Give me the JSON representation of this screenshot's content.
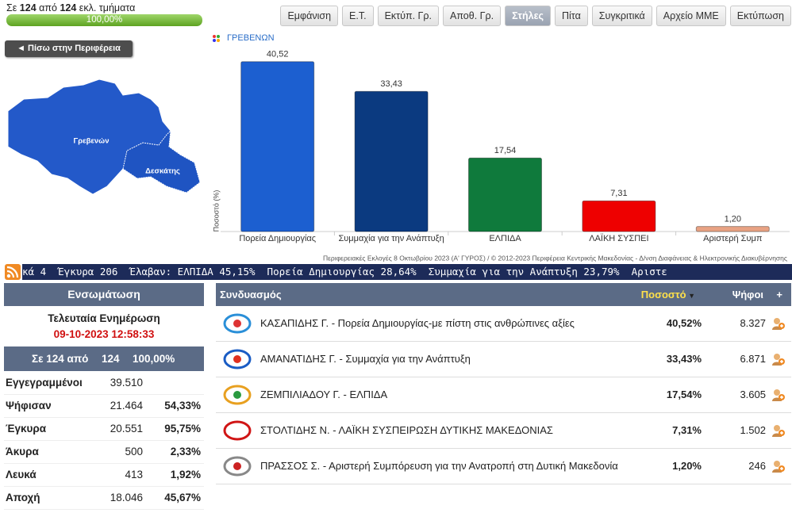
{
  "header": {
    "prefix": "Σε",
    "done": "124",
    "middle": "από",
    "total": "124",
    "suffix": "εκλ. τμήματα",
    "progress": "100,00%"
  },
  "toolbar": [
    "Εμφάνιση",
    "Ε.Τ.",
    "Εκτύπ. Γρ.",
    "Αποθ. Γρ.",
    "Στήλες",
    "Πίτα",
    "Συγκριτικά",
    "Αρχείο ΜΜΕ",
    "Εκτύπωση"
  ],
  "back_button": "◄ Πίσω στην Περιφέρεια",
  "map": {
    "labels": [
      "Γρεβενών",
      "Δεσκάτης"
    ]
  },
  "chart_data": {
    "type": "bar",
    "title": "ΓΡΕΒΕΝΩΝ",
    "y_label": "Ποσοστό (%)",
    "categories": [
      "Πορεία Δημιουργίας",
      "Συμμαχία για την Ανάπτυξη",
      "ΕΛΠΙΔΑ",
      "ΛΑΪΚΗ ΣΥΣΠΕΙ",
      "Αριστερή Συμπ"
    ],
    "values": [
      40.52,
      33.43,
      17.54,
      7.31,
      1.2
    ],
    "value_labels": [
      "40,52",
      "33,43",
      "17,54",
      "7,31",
      "1,20"
    ],
    "colors": [
      "#1c5fd0",
      "#0b3a80",
      "#0f7a3c",
      "#ee0000",
      "#e8a283"
    ],
    "ylim": [
      0,
      45
    ],
    "footnote": "Περιφερειακές Εκλογές 8 Οκτωβρίου 2023 (Α' ΓΥΡΟΣ) / © 2012-2023 Περιφέρεια Κεντρικής Μακεδονίας - Δ/νση Διαφάνειας & Ηλεκτρονικής Διακυβέρνησης"
  },
  "ticker": "κά 4  Έγκυρα 206  Έλαβαν: ΕΛΠΙΔΑ 45,15%  Πορεία Δημιουργίας 28,64%  Συμμαχία για την Ανάπτυξη 23,79%  Αριστε",
  "summary": {
    "title": "Ενσωμάτωση",
    "update_label": "Τελευταία Ενημέρωση",
    "update_time": "09-10-2023 12:58:33",
    "coverage": [
      "Σε 124 από",
      "124",
      "100,00%"
    ],
    "rows": [
      [
        "Εγγεγραμμένοι",
        "39.510"
      ],
      [
        "Ψήφισαν",
        "21.464",
        "54,33%"
      ],
      [
        "Έγκυρα",
        "20.551",
        "95,75%"
      ],
      [
        "Άκυρα",
        "500",
        "2,33%"
      ],
      [
        "Λευκά",
        "413",
        "1,92%"
      ],
      [
        "Αποχή",
        "18.046",
        "45,67%"
      ]
    ]
  },
  "results": {
    "columns": [
      "Συνδυασμός",
      "Ποσοστό",
      "Ψήφοι",
      "+"
    ],
    "rows": [
      [
        "ΚΑΣΑΠΙΔΗΣ Γ. - Πορεία Δημιουργίας-με πίστη στις ανθρώπινες αξίες",
        "40,52%",
        "8.327"
      ],
      [
        "ΑΜΑΝΑΤΙΔΗΣ Γ. - Συμμαχία για την Ανάπτυξη",
        "33,43%",
        "6.871"
      ],
      [
        "ΖΕΜΠΙΛΙΑΔΟΥ Γ. - ΕΛΠΙΔΑ",
        "17,54%",
        "3.605"
      ],
      [
        "ΣΤΟΛΤΙΔΗΣ Ν. - ΛΑΪΚΗ ΣΥΣΠΕΙΡΩΣΗ ΔΥΤΙΚΗΣ ΜΑΚΕΔΟΝΙΑΣ",
        "7,31%",
        "1.502"
      ],
      [
        "ΠΡΑΣΣΟΣ Σ. - Αριστερή Συμπόρευση για την Ανατροπή στη Δυτική Μακεδονία",
        "1,20%",
        "246"
      ]
    ]
  }
}
